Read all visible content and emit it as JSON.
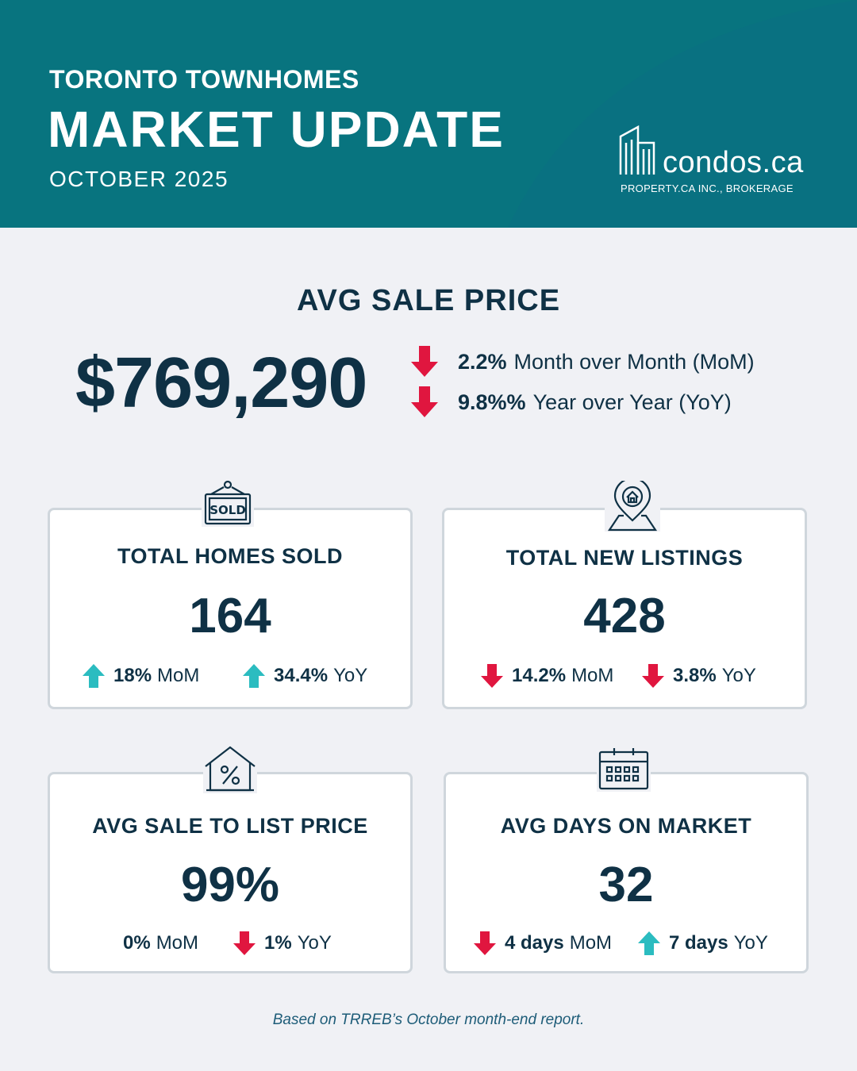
{
  "header": {
    "subtitle": "TORONTO TOWNHOMES",
    "title": "MARKET UPDATE",
    "period": "OCTOBER 2025",
    "logo_word": "condos.ca",
    "logo_tag": "PROPERTY.CA INC., BROKERAGE"
  },
  "avg_price": {
    "heading": "AVG SALE PRICE",
    "value": "$769,290",
    "mom_value": "2.2%",
    "mom_label": "Month over Month (MoM)",
    "mom_direction": "down",
    "yoy_value": "9.8%%",
    "yoy_label": "Year over Year (YoY)",
    "yoy_direction": "down"
  },
  "cards": {
    "homes_sold": {
      "title": "TOTAL HOMES SOLD",
      "icon": "sold-sign-icon",
      "value": "164",
      "mom_value": "18%",
      "mom_label": "MoM",
      "mom_direction": "up",
      "yoy_value": "34.4%",
      "yoy_label": "YoY",
      "yoy_direction": "up"
    },
    "new_listings": {
      "title": "TOTAL NEW LISTINGS",
      "icon": "location-pin-house-icon",
      "value": "428",
      "mom_value": "14.2%",
      "mom_label": "MoM",
      "mom_direction": "down",
      "yoy_value": "3.8%",
      "yoy_label": "YoY",
      "yoy_direction": "down"
    },
    "sale_to_list": {
      "title": "AVG SALE TO LIST PRICE",
      "icon": "house-percent-icon",
      "value": "99%",
      "mom_value": "0%",
      "mom_label": "MoM",
      "mom_direction": "none",
      "yoy_value": "1%",
      "yoy_label": "YoY",
      "yoy_direction": "down"
    },
    "days_on_market": {
      "title": "AVG DAYS ON MARKET",
      "icon": "calendar-icon",
      "value": "32",
      "mom_value": "4 days",
      "mom_label": "MoM",
      "mom_direction": "down",
      "yoy_value": "7 days",
      "yoy_label": "YoY",
      "yoy_direction": "up"
    }
  },
  "colors": {
    "header_bg": "#08747f",
    "dark_text": "#0f3145",
    "down_arrow": "#e0163f",
    "up_arrow": "#2bbcc0"
  },
  "footnote": "Based on TRREB’s October month-end report."
}
